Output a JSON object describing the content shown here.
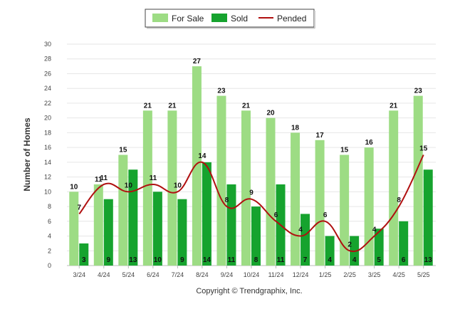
{
  "chart_data": {
    "type": "bar",
    "categories": [
      "3/24",
      "4/24",
      "5/24",
      "6/24",
      "7/24",
      "8/24",
      "9/24",
      "10/24",
      "11/24",
      "12/24",
      "1/25",
      "2/25",
      "3/25",
      "4/25",
      "5/25"
    ],
    "series": [
      {
        "name": "For Sale",
        "type": "bar",
        "color": "#9ddc84",
        "values": [
          10,
          11,
          15,
          21,
          21,
          27,
          23,
          21,
          20,
          18,
          17,
          15,
          16,
          21,
          23
        ]
      },
      {
        "name": "Sold",
        "type": "bar",
        "color": "#16a32e",
        "values": [
          3,
          9,
          13,
          10,
          9,
          14,
          11,
          8,
          11,
          7,
          4,
          4,
          5,
          6,
          13
        ]
      },
      {
        "name": "Pended",
        "type": "line",
        "color": "#b01010",
        "values": [
          7,
          11,
          10,
          11,
          10,
          14,
          8,
          9,
          6,
          4,
          6,
          2,
          4,
          8,
          15
        ]
      }
    ],
    "ylabel": "Number of Homes",
    "xlabel": "",
    "ylim": [
      0,
      30
    ],
    "yticks": [
      0,
      2,
      4,
      6,
      8,
      10,
      12,
      14,
      16,
      18,
      20,
      22,
      24,
      26,
      28,
      30
    ],
    "grid": true,
    "legend_position": "top-center"
  },
  "credit": "Copyright © Trendgraphix, Inc."
}
